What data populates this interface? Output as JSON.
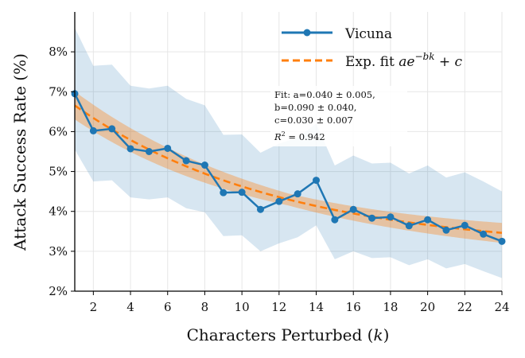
{
  "chart_data": {
    "type": "line",
    "xlabel": "Characters Perturbed (",
    "xlabel_var": "k",
    "xlabel_close": ")",
    "ylabel": "Attack Success Rate (%)",
    "xlim": [
      1,
      24
    ],
    "ylim": [
      2,
      9
    ],
    "x_ticks": [
      2,
      4,
      6,
      8,
      10,
      12,
      14,
      16,
      18,
      20,
      22,
      24
    ],
    "y_ticks": [
      2,
      3,
      4,
      5,
      6,
      7,
      8
    ],
    "y_tick_suffix": "%",
    "grid": true,
    "legend_position": "top-right",
    "series": [
      {
        "name": "Vicuna",
        "color": "#1f77b4",
        "x": [
          1,
          2,
          3,
          4,
          5,
          6,
          7,
          8,
          9,
          10,
          11,
          12,
          13,
          14,
          15,
          16,
          17,
          18,
          19,
          20,
          21,
          22,
          23,
          24
        ],
        "values": [
          6.95,
          6.02,
          6.07,
          5.57,
          5.5,
          5.58,
          5.27,
          5.16,
          4.47,
          4.48,
          4.05,
          4.25,
          4.44,
          4.78,
          3.79,
          4.05,
          3.83,
          3.86,
          3.64,
          3.79,
          3.53,
          3.65,
          3.43,
          3.25
        ],
        "band_upper": [
          8.6,
          7.65,
          7.68,
          7.15,
          7.08,
          7.15,
          6.82,
          6.66,
          5.92,
          5.93,
          5.47,
          5.7,
          5.85,
          6.2,
          5.15,
          5.4,
          5.2,
          5.22,
          4.95,
          5.15,
          4.85,
          4.98,
          4.75,
          4.5
        ],
        "band_lower": [
          5.55,
          4.75,
          4.78,
          4.35,
          4.3,
          4.35,
          4.08,
          3.98,
          3.38,
          3.4,
          3.0,
          3.2,
          3.35,
          3.65,
          2.8,
          3.0,
          2.83,
          2.85,
          2.65,
          2.8,
          2.57,
          2.68,
          2.5,
          2.33
        ]
      }
    ],
    "fit": {
      "name": "Exp. fit ",
      "formula_base": "ae",
      "formula_exp": "−bk",
      "formula_tail": " + c",
      "color": "#ff7f0e",
      "a": 0.04,
      "b": 0.09,
      "c": 0.03,
      "band_halfwidth_start": 0.35,
      "band_halfwidth_mid": 0.15,
      "band_halfwidth_end": 0.25
    },
    "annotation": {
      "lines": [
        "Fit: a=0.040 ± 0.005,",
        "b=0.090 ± 0.040,",
        "c=0.030 ± 0.007"
      ],
      "r2_label": "R",
      "r2_sup": "2",
      "r2_value": " = 0.942"
    }
  }
}
